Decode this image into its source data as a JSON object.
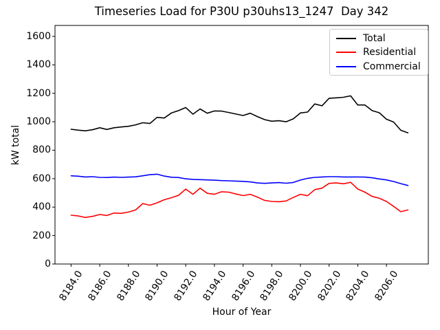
{
  "chart_data": {
    "type": "line",
    "title": "Timeseries Load for P30U p30uhs13_1247  Day 342",
    "xlabel": "Hour of Year",
    "ylabel": "kW total",
    "xlim": [
      8182.88,
      8208.92
    ],
    "ylim": [
      0,
      1677
    ],
    "grid": false,
    "legend_position": "upper right",
    "x_ticks": [
      8184,
      8186,
      8188,
      8190,
      8192,
      8194,
      8196,
      8198,
      8200,
      8202,
      8204,
      8206
    ],
    "x_tick_labels": [
      "8184.0",
      "8186.0",
      "8188.0",
      "8190.0",
      "8192.0",
      "8194.0",
      "8196.0",
      "8198.0",
      "8200.0",
      "8202.0",
      "8204.0",
      "8206.0"
    ],
    "y_ticks": [
      0,
      200,
      400,
      600,
      800,
      1000,
      1200,
      1400,
      1600
    ],
    "y_tick_labels": [
      "0",
      "200",
      "400",
      "600",
      "800",
      "1000",
      "1200",
      "1400",
      "1600"
    ],
    "x": [
      8184.0,
      8184.5,
      8185.0,
      8185.5,
      8186.0,
      8186.5,
      8187.0,
      8187.5,
      8188.0,
      8188.5,
      8189.0,
      8189.5,
      8190.0,
      8190.5,
      8191.0,
      8191.5,
      8192.0,
      8192.5,
      8193.0,
      8193.5,
      8194.0,
      8194.5,
      8195.0,
      8195.5,
      8196.0,
      8196.5,
      8197.0,
      8197.5,
      8198.0,
      8198.5,
      8199.0,
      8199.5,
      8200.0,
      8200.5,
      8201.0,
      8201.5,
      8202.0,
      8202.5,
      8203.0,
      8203.5,
      8204.0,
      8204.5,
      8205.0,
      8205.5,
      8206.0,
      8206.5,
      8207.0,
      8207.5
    ],
    "series": [
      {
        "name": "Total",
        "color": "#000000",
        "values": [
          947,
          941,
          936,
          944,
          958,
          946,
          958,
          963,
          968,
          978,
          993,
          988,
          1031,
          1026,
          1062,
          1078,
          1100,
          1053,
          1090,
          1060,
          1076,
          1075,
          1065,
          1054,
          1044,
          1060,
          1036,
          1015,
          1004,
          1007,
          1000,
          1020,
          1062,
          1068,
          1125,
          1112,
          1165,
          1168,
          1172,
          1182,
          1118,
          1118,
          1078,
          1063,
          1018,
          998,
          940,
          922
        ]
      },
      {
        "name": "Residential",
        "color": "#ff0000",
        "values": [
          343,
          338,
          327,
          335,
          348,
          341,
          358,
          356,
          365,
          380,
          425,
          413,
          430,
          452,
          466,
          483,
          527,
          490,
          533,
          497,
          490,
          508,
          505,
          492,
          481,
          490,
          470,
          447,
          440,
          438,
          443,
          468,
          490,
          480,
          523,
          533,
          567,
          570,
          564,
          574,
          527,
          505,
          475,
          462,
          440,
          405,
          368,
          380
        ]
      },
      {
        "name": "Commercial",
        "color": "#0000ff",
        "values": [
          620,
          617,
          612,
          614,
          609,
          608,
          611,
          609,
          611,
          613,
          620,
          628,
          631,
          618,
          610,
          608,
          599,
          595,
          593,
          591,
          589,
          586,
          585,
          583,
          581,
          577,
          570,
          567,
          570,
          572,
          568,
          573,
          590,
          602,
          609,
          612,
          614,
          614,
          612,
          612,
          612,
          611,
          606,
          598,
          591,
          580,
          565,
          552
        ]
      }
    ]
  }
}
